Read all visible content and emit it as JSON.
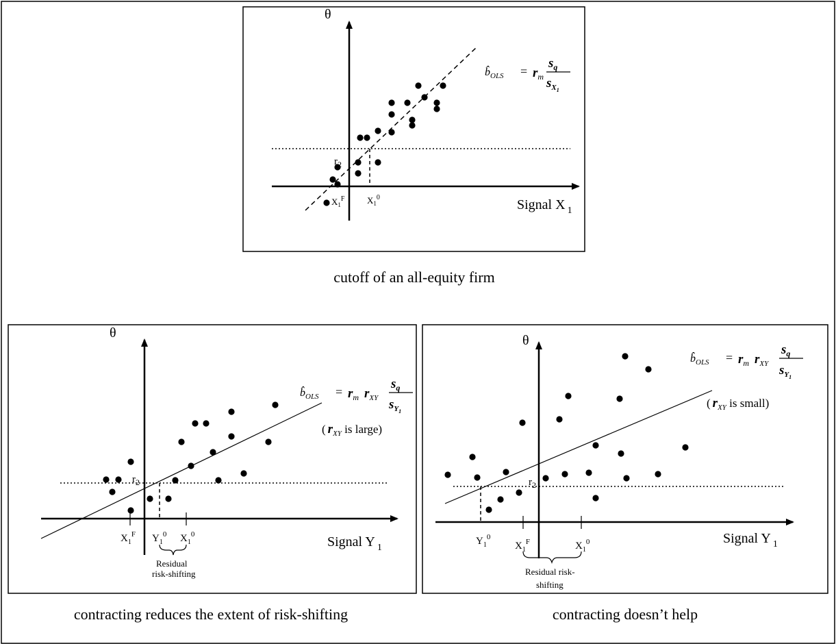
{
  "top_panel": {
    "caption": "cutoff of an all-equity firm",
    "y_axis_label": "θ",
    "x_axis_label": "Signal X",
    "x_axis_sub": "1",
    "cutoff_label": "r",
    "cutoff_sub": "2",
    "tick_xf": "X",
    "tick_xf_sub": "1",
    "tick_xf_sup": "F",
    "tick_x0": "X",
    "tick_x0_sub": "1",
    "tick_x0_sup": "0",
    "formula": {
      "lhs": "b̂",
      "lhs_sub": "OLS",
      "eq": "=",
      "r": "r",
      "r_sub": "m",
      "num": "s",
      "num_sub": "q",
      "den": "s",
      "den_sub": "X",
      "den_subsub": "1"
    }
  },
  "left_panel": {
    "caption": "contracting reduces the extent of risk-shifting",
    "y_axis_label": "θ",
    "x_axis_label": "Signal Y",
    "x_axis_sub": "1",
    "cutoff_label": "r",
    "cutoff_sub": "2",
    "tick_xf": "X",
    "tick_xf_sub": "1",
    "tick_xf_sup": "F",
    "tick_y0": "Y",
    "tick_y0_sub": "1",
    "tick_y0_sup": "0",
    "tick_x0": "X",
    "tick_x0_sub": "1",
    "tick_x0_sup": "0",
    "brace_line1": "Residual",
    "brace_line2": "risk-shifting",
    "formula": {
      "lhs": "b̂",
      "lhs_sub": "OLS",
      "eq": "=",
      "r1": "r",
      "r1_sub": "m",
      "r2": "r",
      "r2_sub": "XY",
      "num": "s",
      "num_sub": "q",
      "den": "s",
      "den_sub": "Y",
      "den_subsub": "1"
    },
    "note_open": "(",
    "note_r": "r",
    "note_sub": "XY",
    "note_text": " is large)"
  },
  "right_panel": {
    "caption": "contracting doesn’t help",
    "y_axis_label": "θ",
    "x_axis_label": "Signal Y",
    "x_axis_sub": "1",
    "cutoff_label": "r",
    "cutoff_sub": "2",
    "tick_y0": "Y",
    "tick_y0_sub": "1",
    "tick_y0_sup": "0",
    "tick_xf": "X",
    "tick_xf_sub": "1",
    "tick_xf_sup": "F",
    "tick_x0": "X",
    "tick_x0_sub": "1",
    "tick_x0_sup": "0",
    "brace_line1": "Residual risk-",
    "brace_line2": "shifting",
    "formula": {
      "lhs": "b̂",
      "lhs_sub": "OLS",
      "eq": "=",
      "r1": "r",
      "r1_sub": "m",
      "r2": "r",
      "r2_sub": "XY",
      "num": "s",
      "num_sub": "q",
      "den": "s",
      "den_sub": "Y",
      "den_subsub": "1"
    },
    "note_open": "(",
    "note_r": "r",
    "note_sub": "XY",
    "note_text": " is small)"
  }
}
